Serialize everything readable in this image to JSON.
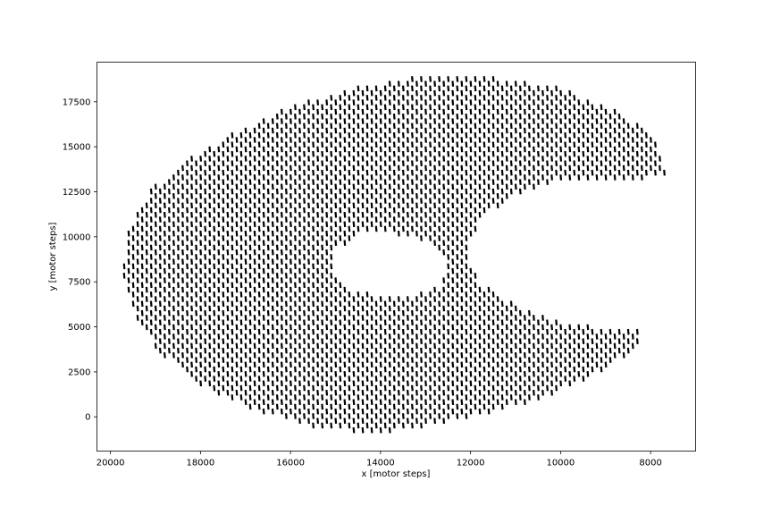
{
  "chart_data": {
    "type": "scatter",
    "title": "",
    "xlabel": "x [motor steps]",
    "ylabel": "y [motor steps]",
    "xlim": [
      20300,
      7000
    ],
    "ylim": [
      19700,
      -1900
    ],
    "x_inverted": true,
    "y_inverted": true,
    "xticks": [
      20000,
      18000,
      16000,
      14000,
      12000,
      10000,
      8000
    ],
    "yticks": [
      0,
      2500,
      5000,
      7500,
      10000,
      12500,
      15000,
      17500
    ],
    "grid": false,
    "legend": "none",
    "marker_color": "#000000",
    "marker": "short vertical dash",
    "shape": {
      "description": "dense grid of dash markers filling a C-shaped region",
      "outer_boundary": [
        [
          14000,
          -900
        ],
        [
          15500,
          -600
        ],
        [
          17000,
          600
        ],
        [
          18000,
          1800
        ],
        [
          19000,
          3800
        ],
        [
          19500,
          5800
        ],
        [
          19750,
          7800
        ],
        [
          19600,
          10500
        ],
        [
          19100,
          12600
        ],
        [
          18300,
          14300
        ],
        [
          17200,
          15800
        ],
        [
          16000,
          17200
        ],
        [
          14500,
          18300
        ],
        [
          13000,
          18900
        ],
        [
          11500,
          18800
        ],
        [
          10000,
          18200
        ],
        [
          8800,
          17000
        ],
        [
          7900,
          15600
        ],
        [
          7650,
          13500
        ],
        [
          8500,
          13100
        ],
        [
          10000,
          13300
        ],
        [
          11000,
          12400
        ],
        [
          11700,
          11200
        ],
        [
          12000,
          10000
        ],
        [
          12050,
          8500
        ],
        [
          11800,
          7400
        ],
        [
          11200,
          6400
        ],
        [
          10300,
          5400
        ],
        [
          9200,
          4900
        ],
        [
          8200,
          4800
        ],
        [
          8300,
          3800
        ],
        [
          9400,
          2200
        ],
        [
          10500,
          1000
        ],
        [
          12000,
          0
        ],
        [
          14000,
          -900
        ]
      ],
      "inner_hole": [
        [
          13700,
          6500
        ],
        [
          12700,
          7200
        ],
        [
          12500,
          8400
        ],
        [
          12800,
          9600
        ],
        [
          13800,
          10300
        ],
        [
          14500,
          10200
        ],
        [
          15000,
          9300
        ],
        [
          15100,
          8300
        ],
        [
          14600,
          7000
        ],
        [
          13700,
          6500
        ]
      ],
      "grid_spacing_x": 200,
      "grid_spacing_y": 260
    }
  }
}
